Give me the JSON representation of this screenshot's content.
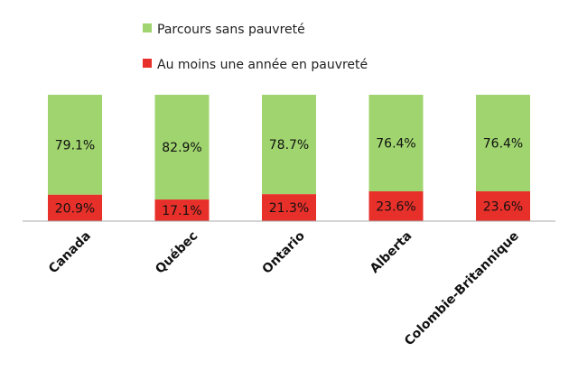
{
  "chart_data": {
    "type": "bar",
    "stacked": true,
    "percent_stacked": true,
    "categories": [
      "Canada",
      "Québec",
      "Ontario",
      "Alberta",
      "Colombie-Britannique"
    ],
    "series": [
      {
        "name": "Au moins une année en pauvreté",
        "color": "#e8302a",
        "values": [
          20.9,
          17.1,
          21.3,
          23.6,
          23.6
        ],
        "labels": [
          "20.9%",
          "17.1%",
          "21.3%",
          "23.6%",
          "23.6%"
        ]
      },
      {
        "name": "Parcours sans pauvreté",
        "color": "#9fd46e",
        "values": [
          79.1,
          82.9,
          78.7,
          76.4,
          76.4
        ],
        "labels": [
          "79.1%",
          "82.9%",
          "78.7%",
          "76.4%",
          "76.4%"
        ]
      }
    ],
    "ylim": [
      0,
      100
    ],
    "legend_placement": "top",
    "grid": false,
    "colors": {
      "axis": "#aaaaaa"
    }
  }
}
